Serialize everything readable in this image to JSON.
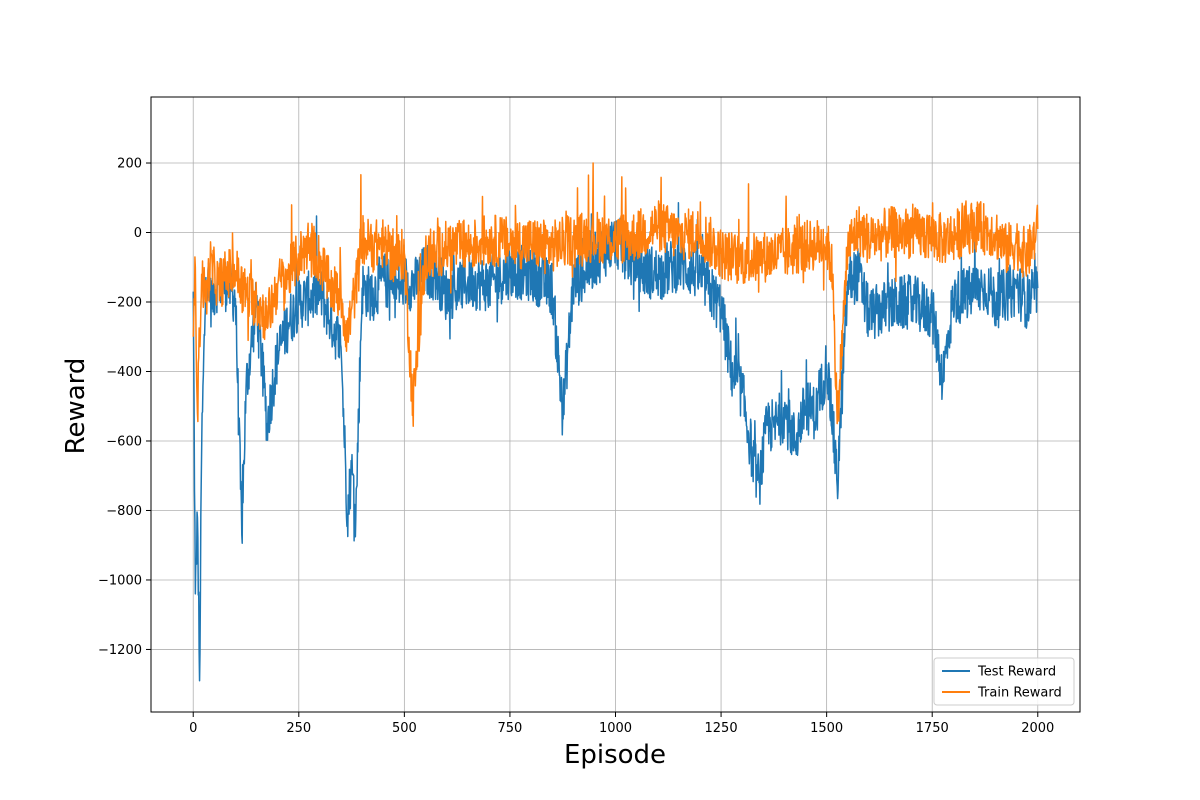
{
  "chart_data": {
    "type": "line",
    "title": "",
    "xlabel": "Episode",
    "ylabel": "Reward",
    "xlim": [
      -100,
      2100
    ],
    "ylim": [
      -1380,
      390
    ],
    "xticks": [
      0,
      250,
      500,
      750,
      1000,
      1250,
      1500,
      1750,
      2000
    ],
    "yticks": [
      -1200,
      -1000,
      -800,
      -600,
      -400,
      -200,
      0,
      200
    ],
    "grid": true,
    "legend_position": "lower-right",
    "colors": {
      "test": "#1f77b4",
      "train": "#ff7f0e",
      "grid": "#b0b0b0"
    },
    "episodes": 2001,
    "series": [
      {
        "name": "Test Reward",
        "color": "#1f77b4",
        "sampled": true,
        "x": [
          0,
          5,
          10,
          15,
          20,
          30,
          40,
          60,
          80,
          100,
          115,
          125,
          150,
          175,
          200,
          225,
          250,
          275,
          300,
          325,
          350,
          365,
          375,
          385,
          400,
          425,
          450,
          475,
          500,
          525,
          550,
          575,
          600,
          650,
          700,
          750,
          800,
          850,
          875,
          900,
          950,
          1000,
          1050,
          1100,
          1150,
          1200,
          1250,
          1275,
          1300,
          1325,
          1340,
          1360,
          1375,
          1400,
          1425,
          1450,
          1475,
          1500,
          1515,
          1525,
          1550,
          1575,
          1600,
          1650,
          1700,
          1750,
          1775,
          1800,
          1850,
          1875,
          1890,
          1900,
          1925,
          1950,
          1975,
          2000
        ],
        "y": [
          -170,
          -1040,
          -820,
          -1290,
          -620,
          -130,
          -200,
          -140,
          -150,
          -190,
          -870,
          -450,
          -200,
          -550,
          -350,
          -260,
          -200,
          -190,
          -170,
          -250,
          -330,
          -810,
          -680,
          -820,
          -160,
          -180,
          -130,
          -170,
          -140,
          -150,
          -110,
          -120,
          -180,
          -140,
          -150,
          -110,
          -120,
          -160,
          -520,
          -150,
          -80,
          -20,
          -100,
          -120,
          -90,
          -120,
          -220,
          -400,
          -460,
          -650,
          -720,
          -550,
          -560,
          -520,
          -600,
          -500,
          -520,
          -380,
          -560,
          -730,
          -140,
          -120,
          -240,
          -210,
          -200,
          -230,
          -420,
          -190,
          -170,
          -150,
          -180,
          -200,
          -180,
          -160,
          -200,
          -160
        ]
      },
      {
        "name": "Train Reward",
        "color": "#ff7f0e",
        "sampled": true,
        "x": [
          0,
          5,
          10,
          15,
          20,
          30,
          40,
          60,
          80,
          100,
          125,
          150,
          175,
          200,
          225,
          250,
          275,
          300,
          325,
          350,
          365,
          375,
          385,
          400,
          425,
          450,
          475,
          500,
          520,
          550,
          575,
          600,
          650,
          700,
          750,
          800,
          850,
          900,
          950,
          1000,
          1050,
          1100,
          1150,
          1200,
          1250,
          1300,
          1350,
          1400,
          1450,
          1500,
          1515,
          1525,
          1550,
          1575,
          1600,
          1650,
          1700,
          1750,
          1775,
          1800,
          1850,
          1900,
          1925,
          1950,
          1975,
          2000
        ],
        "y": [
          -300,
          -100,
          -520,
          -300,
          -120,
          -200,
          -90,
          -150,
          -120,
          -110,
          -180,
          -200,
          -250,
          -150,
          -120,
          -70,
          -30,
          -80,
          -160,
          -180,
          -300,
          -220,
          -160,
          -20,
          -40,
          -30,
          -80,
          -60,
          -500,
          -70,
          -60,
          -40,
          -40,
          -20,
          -30,
          -30,
          -40,
          -20,
          -10,
          -20,
          -10,
          20,
          -10,
          0,
          -60,
          -80,
          -70,
          -60,
          -40,
          -30,
          -120,
          -550,
          -40,
          10,
          -20,
          0,
          0,
          -10,
          -20,
          -10,
          20,
          0,
          -50,
          -30,
          -70,
          10
        ]
      }
    ]
  }
}
